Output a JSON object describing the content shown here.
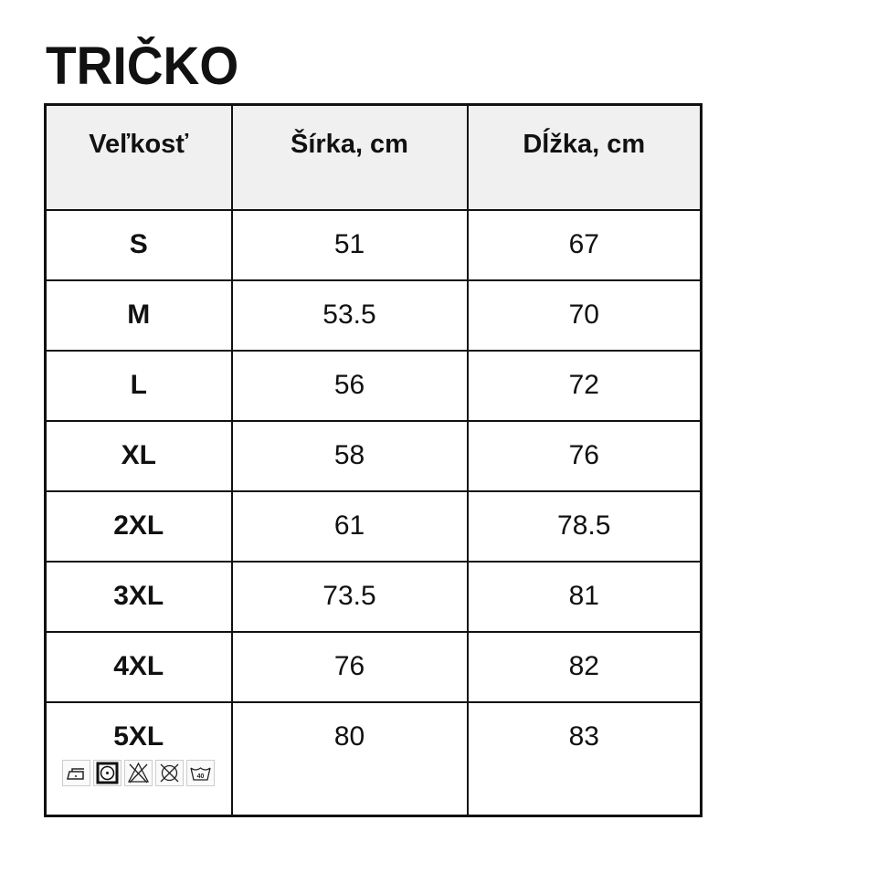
{
  "title": "TRIČKO",
  "table": {
    "headers": [
      "Veľkosť",
      "Šírka, cm",
      "Dĺžka, cm"
    ],
    "rows": [
      {
        "size": "S",
        "width": "51",
        "length": "67"
      },
      {
        "size": "M",
        "width": "53.5",
        "length": "70"
      },
      {
        "size": "L",
        "width": "56",
        "length": "72"
      },
      {
        "size": "XL",
        "width": "58",
        "length": "76"
      },
      {
        "size": "2XL",
        "width": "61",
        "length": "78.5"
      },
      {
        "size": "3XL",
        "width": "73.5",
        "length": "81"
      },
      {
        "size": "4XL",
        "width": "76",
        "length": "82"
      },
      {
        "size": "5XL",
        "width": "80",
        "length": "83"
      }
    ]
  },
  "care_icons": [
    "iron-low-icon",
    "tumble-dry-icon",
    "no-bleach-icon",
    "no-dry-clean-icon",
    "wash-40-icon"
  ],
  "wash_temp": "40"
}
